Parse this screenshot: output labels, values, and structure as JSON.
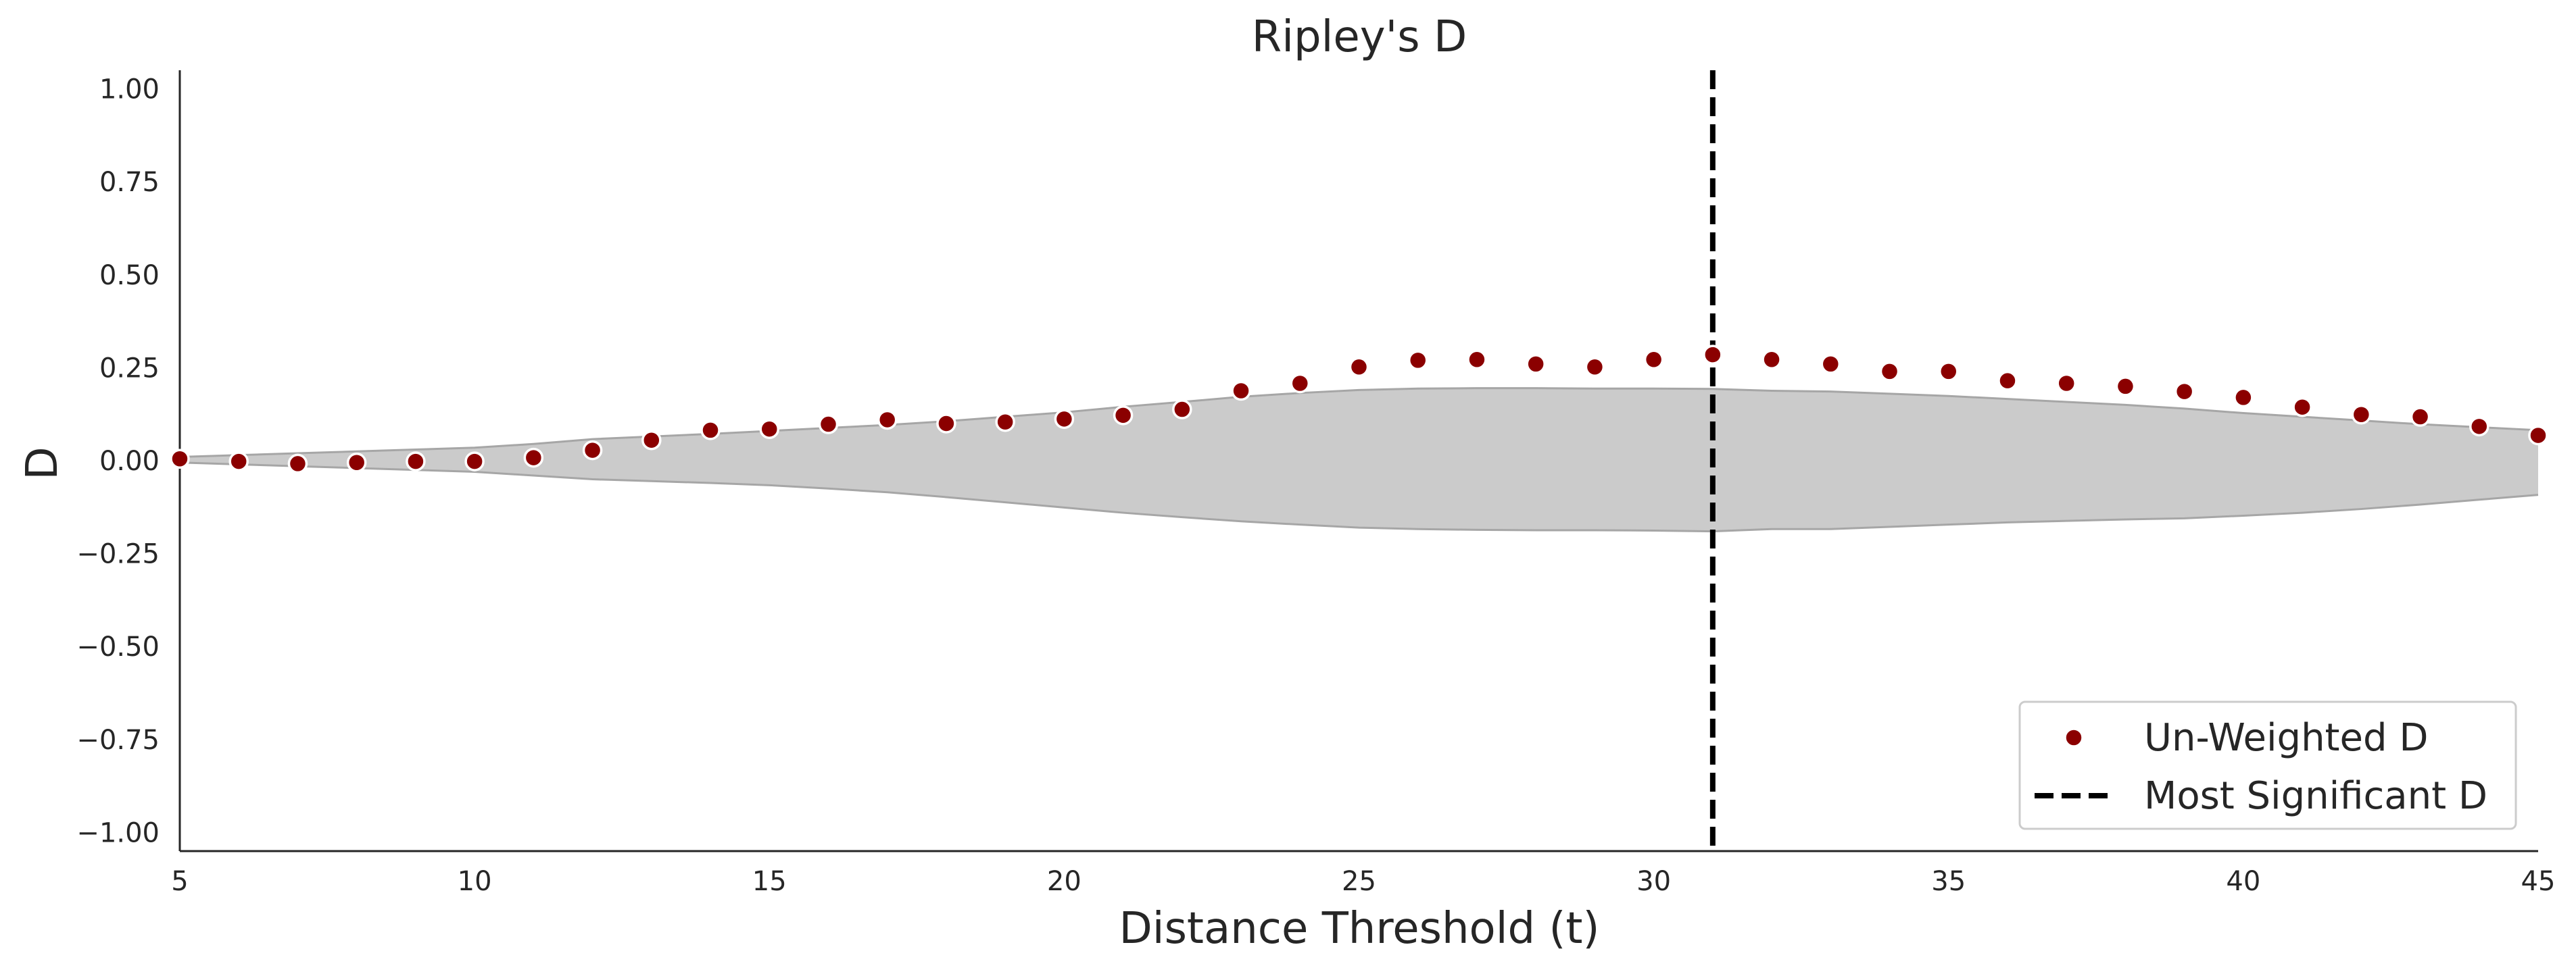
{
  "chart_data": {
    "type": "scatter",
    "title": "Ripley's D",
    "xlabel": "Distance Threshold (t)",
    "ylabel": "D",
    "xlim": [
      5,
      45
    ],
    "ylim": [
      -1.05,
      1.05
    ],
    "xticks": [
      5,
      10,
      15,
      20,
      25,
      30,
      35,
      40,
      45
    ],
    "xtick_labels": [
      "5",
      "10",
      "15",
      "20",
      "25",
      "30",
      "35",
      "40",
      "45"
    ],
    "yticks": [
      1.0,
      0.75,
      0.5,
      0.25,
      0.0,
      -0.25,
      -0.5,
      -0.75,
      -1.0
    ],
    "ytick_labels": [
      "1.00",
      "0.75",
      "0.50",
      "0.25",
      "0.00",
      "−0.25",
      "−0.50",
      "−0.75",
      "−1.00"
    ],
    "grid": false,
    "legend_position": "bottom-right",
    "series": [
      {
        "name": "Un-Weighted D",
        "kind": "scatter",
        "color": "#8b0000",
        "x": [
          5,
          6,
          7,
          8,
          9,
          10,
          11,
          12,
          13,
          14,
          15,
          16,
          17,
          18,
          19,
          20,
          21,
          22,
          23,
          24,
          25,
          26,
          27,
          28,
          29,
          30,
          31,
          32,
          33,
          34,
          35,
          36,
          37,
          38,
          39,
          40,
          41,
          42,
          43,
          44,
          45
        ],
        "y": [
          0.005,
          -0.002,
          -0.008,
          -0.005,
          -0.002,
          -0.002,
          0.008,
          0.028,
          0.055,
          0.082,
          0.085,
          0.098,
          0.11,
          0.1,
          0.104,
          0.112,
          0.122,
          0.138,
          0.188,
          0.208,
          0.252,
          0.27,
          0.272,
          0.26,
          0.252,
          0.272,
          0.285,
          0.272,
          0.26,
          0.24,
          0.24,
          0.215,
          0.208,
          0.2,
          0.186,
          0.17,
          0.144,
          0.124,
          0.118,
          0.092,
          0.068
        ]
      },
      {
        "name": "Most Significant D",
        "kind": "vline",
        "color": "#000000",
        "x": 31
      }
    ],
    "envelope": {
      "color": "#cbcbcb",
      "edge_color": "#a6a6a6",
      "x": [
        5,
        6,
        7,
        8,
        9,
        10,
        11,
        12,
        13,
        14,
        15,
        16,
        17,
        18,
        19,
        20,
        21,
        22,
        23,
        24,
        25,
        26,
        27,
        28,
        29,
        30,
        31,
        32,
        33,
        34,
        35,
        36,
        37,
        38,
        39,
        40,
        41,
        42,
        43,
        44,
        45
      ],
      "upper": [
        0.01,
        0.015,
        0.02,
        0.025,
        0.03,
        0.035,
        0.045,
        0.058,
        0.065,
        0.072,
        0.08,
        0.088,
        0.096,
        0.106,
        0.118,
        0.13,
        0.145,
        0.158,
        0.172,
        0.182,
        0.19,
        0.194,
        0.195,
        0.195,
        0.194,
        0.194,
        0.193,
        0.188,
        0.186,
        0.18,
        0.174,
        0.166,
        0.158,
        0.15,
        0.14,
        0.128,
        0.118,
        0.108,
        0.098,
        0.09,
        0.082
      ],
      "lower": [
        -0.005,
        -0.01,
        -0.015,
        -0.02,
        -0.025,
        -0.03,
        -0.04,
        -0.05,
        -0.055,
        -0.06,
        -0.066,
        -0.075,
        -0.085,
        -0.098,
        -0.112,
        -0.126,
        -0.14,
        -0.152,
        -0.163,
        -0.172,
        -0.18,
        -0.184,
        -0.186,
        -0.187,
        -0.187,
        -0.188,
        -0.19,
        -0.184,
        -0.184,
        -0.178,
        -0.172,
        -0.166,
        -0.162,
        -0.158,
        -0.155,
        -0.148,
        -0.14,
        -0.13,
        -0.118,
        -0.105,
        -0.092
      ]
    }
  }
}
